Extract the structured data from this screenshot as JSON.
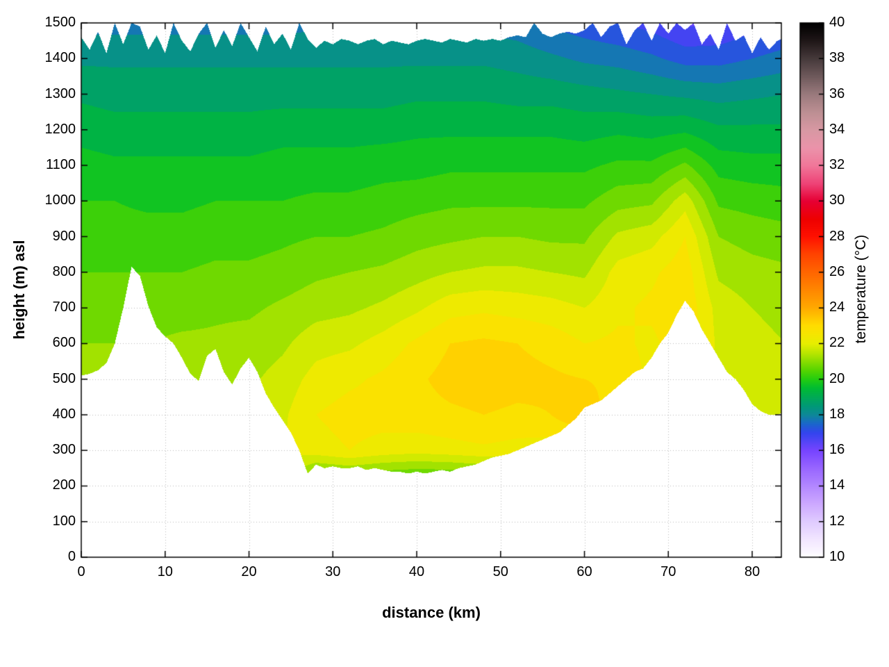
{
  "chart_data": {
    "type": "heatmap",
    "title": "",
    "xlabel": "distance (km)",
    "ylabel": "height (m) asl",
    "cblabel": "temperature (°C)",
    "xlim": [
      0,
      83.5
    ],
    "ylim": [
      0,
      1500
    ],
    "clim": [
      10,
      40
    ],
    "x_ticks": [
      0,
      10,
      20,
      30,
      40,
      50,
      60,
      70,
      80
    ],
    "y_ticks": [
      0,
      100,
      200,
      300,
      400,
      500,
      600,
      700,
      800,
      900,
      1000,
      1100,
      1200,
      1300,
      1400,
      1500
    ],
    "cb_ticks": [
      10,
      12,
      14,
      16,
      18,
      20,
      22,
      24,
      26,
      28,
      30,
      32,
      34,
      36,
      38,
      40
    ],
    "grid": "dotted",
    "legend_position": "none",
    "band_step": 0.5,
    "colors": {
      "background": "#ffffff",
      "frame": "#000000",
      "grid": "#b8b8b8"
    },
    "palette": [
      [
        10,
        "#ffffff"
      ],
      [
        11,
        "#f2e6ff"
      ],
      [
        12,
        "#e0ccff"
      ],
      [
        13,
        "#cda9ff"
      ],
      [
        14,
        "#b388ff"
      ],
      [
        15,
        "#9966ff"
      ],
      [
        16,
        "#7744ff"
      ],
      [
        17,
        "#3344ee"
      ],
      [
        17.5,
        "#1b66cc"
      ],
      [
        18,
        "#0e8899"
      ],
      [
        18.5,
        "#009977"
      ],
      [
        19,
        "#00aa55"
      ],
      [
        19.5,
        "#00bb33"
      ],
      [
        20,
        "#22cc11"
      ],
      [
        20.5,
        "#55d400"
      ],
      [
        21,
        "#88dd00"
      ],
      [
        21.5,
        "#bbe600"
      ],
      [
        22,
        "#e6ee00"
      ],
      [
        22.5,
        "#f5e600"
      ],
      [
        23,
        "#ffdd00"
      ],
      [
        23.5,
        "#ffc400"
      ],
      [
        24,
        "#ffaa00"
      ],
      [
        25,
        "#ff8800"
      ],
      [
        26,
        "#ff6600"
      ],
      [
        27,
        "#ff4400"
      ],
      [
        28,
        "#ff1100"
      ],
      [
        29,
        "#ee0000"
      ],
      [
        30,
        "#e60033"
      ],
      [
        31,
        "#ee4477"
      ],
      [
        32,
        "#f07799"
      ],
      [
        33,
        "#eb93aa"
      ],
      [
        34,
        "#d898a3"
      ],
      [
        35,
        "#bd8f93"
      ],
      [
        36,
        "#9a7a7d"
      ],
      [
        37,
        "#6f5a5c"
      ],
      [
        38,
        "#463a3b"
      ],
      [
        39,
        "#201718"
      ],
      [
        40,
        "#000000"
      ]
    ],
    "terrain_km_step": 1,
    "terrain_elevation_m": [
      510,
      515,
      525,
      545,
      600,
      700,
      815,
      790,
      705,
      645,
      620,
      600,
      560,
      515,
      495,
      565,
      585,
      520,
      485,
      530,
      560,
      520,
      460,
      420,
      385,
      350,
      300,
      235,
      260,
      250,
      255,
      250,
      250,
      255,
      245,
      250,
      245,
      240,
      240,
      235,
      240,
      235,
      240,
      245,
      240,
      250,
      255,
      260,
      270,
      280,
      285,
      290,
      300,
      310,
      320,
      330,
      340,
      350,
      370,
      390,
      420,
      430,
      440,
      460,
      480,
      500,
      520,
      530,
      560,
      600,
      630,
      680,
      720,
      690,
      640,
      600,
      560,
      520,
      500,
      470,
      430,
      410,
      400,
      400,
      410
    ],
    "top_boundary_m": [
      1460,
      1425,
      1475,
      1415,
      1500,
      1440,
      1500,
      1490,
      1425,
      1465,
      1415,
      1500,
      1450,
      1420,
      1470,
      1500,
      1430,
      1480,
      1435,
      1500,
      1460,
      1420,
      1490,
      1440,
      1470,
      1425,
      1500,
      1455,
      1430,
      1450,
      1440,
      1455,
      1450,
      1440,
      1450,
      1455,
      1440,
      1450,
      1445,
      1440,
      1450,
      1455,
      1450,
      1445,
      1455,
      1450,
      1445,
      1455,
      1450,
      1455,
      1450,
      1460,
      1465,
      1460,
      1500,
      1470,
      1460,
      1470,
      1475,
      1470,
      1480,
      1500,
      1460,
      1490,
      1500,
      1440,
      1480,
      1500,
      1450,
      1500,
      1470,
      1500,
      1480,
      1500,
      1440,
      1470,
      1425,
      1500,
      1450,
      1465,
      1415,
      1460,
      1425,
      1450,
      1460
    ],
    "field": {
      "note": "temperature[i] is the column at x = x_start + i*x_step km; each column lists T(°C) at z = z_start .. z_start+(n-1)*z_step m (bottom to top)",
      "x_start": 0,
      "x_step": 4,
      "z_start": 0,
      "z_step": 100,
      "temperature": [
        [
          21.6,
          21.6,
          21.5,
          21.4,
          21.3,
          21.2,
          21.0,
          20.8,
          20.5,
          20.3,
          20.0,
          19.7,
          19.3,
          18.9,
          18.4,
          17.8
        ],
        [
          21.6,
          21.6,
          21.5,
          21.4,
          21.3,
          21.2,
          21.0,
          20.8,
          20.5,
          20.2,
          20.0,
          19.6,
          19.2,
          18.8,
          18.4,
          17.8
        ],
        [
          21.8,
          21.8,
          21.7,
          21.6,
          21.4,
          21.2,
          21.0,
          20.8,
          20.5,
          20.2,
          19.9,
          19.6,
          19.2,
          18.8,
          18.4,
          17.8
        ],
        [
          21.9,
          21.9,
          21.8,
          21.7,
          21.5,
          21.3,
          21.1,
          20.8,
          20.5,
          20.2,
          19.9,
          19.6,
          19.2,
          18.8,
          18.4,
          17.8
        ],
        [
          22.0,
          22.0,
          21.9,
          21.8,
          21.6,
          21.4,
          21.1,
          20.9,
          20.6,
          20.3,
          20.0,
          19.6,
          19.2,
          18.8,
          18.4,
          17.8
        ],
        [
          22.0,
          22.0,
          21.9,
          21.8,
          21.6,
          21.4,
          21.2,
          20.9,
          20.6,
          20.3,
          20.0,
          19.6,
          19.2,
          18.8,
          18.4,
          17.8
        ],
        [
          21.8,
          21.8,
          21.9,
          22.0,
          21.9,
          21.7,
          21.4,
          21.1,
          20.7,
          20.4,
          20.0,
          19.7,
          19.3,
          18.8,
          18.4,
          17.8
        ],
        [
          19.8,
          19.8,
          20.0,
          22.3,
          22.5,
          22.2,
          21.8,
          21.3,
          20.9,
          20.5,
          20.1,
          19.7,
          19.3,
          18.8,
          18.4,
          17.9
        ],
        [
          19.8,
          19.8,
          20.2,
          22.5,
          22.7,
          22.4,
          21.9,
          21.4,
          21.0,
          20.5,
          20.1,
          19.7,
          19.3,
          18.8,
          18.4,
          17.9
        ],
        [
          19.8,
          19.8,
          20.0,
          22.3,
          22.7,
          22.6,
          22.2,
          21.6,
          21.1,
          20.6,
          20.2,
          19.8,
          19.3,
          18.8,
          18.4,
          17.9
        ],
        [
          19.8,
          19.8,
          19.9,
          22.2,
          22.8,
          22.9,
          22.6,
          21.9,
          21.3,
          20.8,
          20.3,
          19.8,
          19.4,
          18.9,
          18.4,
          17.9
        ],
        [
          19.8,
          19.8,
          19.9,
          22.3,
          22.9,
          23.2,
          23.0,
          22.3,
          21.5,
          20.9,
          20.4,
          19.9,
          19.4,
          18.9,
          18.4,
          17.8
        ],
        [
          19.9,
          19.9,
          20.1,
          22.4,
          23.0,
          23.3,
          23.1,
          22.4,
          21.6,
          21.0,
          20.4,
          19.9,
          19.4,
          18.9,
          18.4,
          17.8
        ],
        [
          20.0,
          20.0,
          20.2,
          22.3,
          22.9,
          23.2,
          23.0,
          22.3,
          21.6,
          21.0,
          20.4,
          19.9,
          19.4,
          18.8,
          18.3,
          17.7
        ],
        [
          20.2,
          20.2,
          20.5,
          22.2,
          23.0,
          23.1,
          22.8,
          22.2,
          21.5,
          20.9,
          20.4,
          19.9,
          19.4,
          18.8,
          18.1,
          17.4
        ],
        [
          21.0,
          21.0,
          21.2,
          22.0,
          23.6,
          23.0,
          22.5,
          22.0,
          21.4,
          20.9,
          20.4,
          19.9,
          19.3,
          18.7,
          17.9,
          17.2
        ],
        [
          21.2,
          21.2,
          21.4,
          21.8,
          22.4,
          22.8,
          22.6,
          22.4,
          22.2,
          21.6,
          20.8,
          20.1,
          19.4,
          18.6,
          17.8,
          17.0
        ],
        [
          21.2,
          21.2,
          21.4,
          21.7,
          22.0,
          22.4,
          22.4,
          22.6,
          22.4,
          21.8,
          20.9,
          20.1,
          19.3,
          18.5,
          17.6,
          16.8
        ],
        [
          21.3,
          21.3,
          21.5,
          21.8,
          22.2,
          22.6,
          22.8,
          22.9,
          22.8,
          22.5,
          21.8,
          20.6,
          19.4,
          18.4,
          17.3,
          16.4
        ],
        [
          21.2,
          21.2,
          21.3,
          21.4,
          21.6,
          21.8,
          21.9,
          21.8,
          21.4,
          21.0,
          20.4,
          19.8,
          19.1,
          18.3,
          17.3,
          16.5
        ],
        [
          21.2,
          21.2,
          21.3,
          21.4,
          21.5,
          21.6,
          21.6,
          21.5,
          21.2,
          20.8,
          20.3,
          19.7,
          19.1,
          18.4,
          17.5,
          16.8
        ],
        [
          21.3,
          21.3,
          21.4,
          21.5,
          21.6,
          21.6,
          21.5,
          21.4,
          21.1,
          20.7,
          20.2,
          19.7,
          19.1,
          18.5,
          17.7,
          17.0
        ]
      ]
    }
  }
}
